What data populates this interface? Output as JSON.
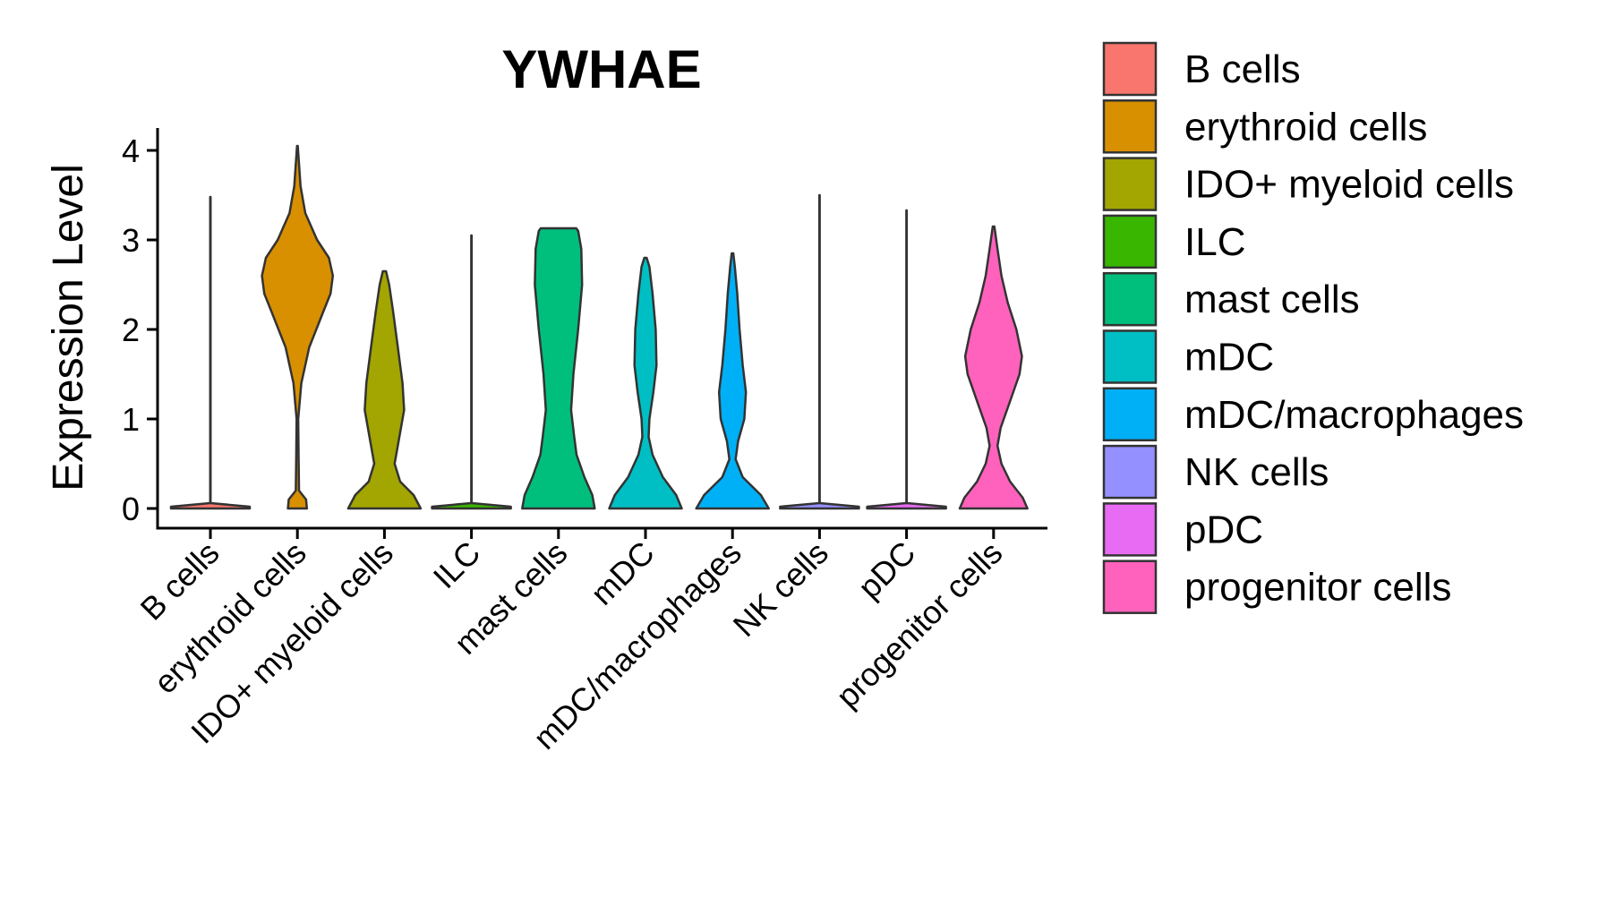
{
  "chart_data": {
    "type": "violin",
    "title": "YWHAE",
    "xlabel": "",
    "ylabel": "Expression Level",
    "ylim": [
      -0.2,
      4.25
    ],
    "yticks": [
      0,
      1,
      2,
      3,
      4
    ],
    "legend_position": "right",
    "categories": [
      "B cells",
      "erythroid cells",
      "IDO+ myeloid cells",
      "ILC",
      "mast cells",
      "mDC",
      "mDC/macrophages",
      "NK cells",
      "pDC",
      "progenitor cells"
    ],
    "series": [
      {
        "name": "B cells",
        "color": "#F8766D",
        "max": 3.48,
        "profile": [
          [
            0,
            1.0
          ],
          [
            0.02,
            1.0
          ],
          [
            0.06,
            0.005
          ],
          [
            3.48,
            0.005
          ]
        ]
      },
      {
        "name": "erythroid cells",
        "color": "#D89000",
        "max": 4.05,
        "profile": [
          [
            0,
            0.24
          ],
          [
            0.1,
            0.22
          ],
          [
            0.2,
            0.04
          ],
          [
            0.6,
            0.03
          ],
          [
            1.0,
            0.02
          ],
          [
            1.4,
            0.1
          ],
          [
            1.8,
            0.3
          ],
          [
            2.2,
            0.66
          ],
          [
            2.4,
            0.84
          ],
          [
            2.6,
            0.9
          ],
          [
            2.8,
            0.8
          ],
          [
            3.0,
            0.5
          ],
          [
            3.3,
            0.2
          ],
          [
            3.6,
            0.08
          ],
          [
            3.85,
            0.04
          ],
          [
            4.05,
            0.01
          ]
        ]
      },
      {
        "name": "IDO+ myeloid cells",
        "color": "#A3A500",
        "max": 2.65,
        "profile": [
          [
            0,
            0.92
          ],
          [
            0.15,
            0.74
          ],
          [
            0.3,
            0.4
          ],
          [
            0.5,
            0.26
          ],
          [
            0.8,
            0.38
          ],
          [
            1.1,
            0.5
          ],
          [
            1.4,
            0.46
          ],
          [
            1.8,
            0.34
          ],
          [
            2.2,
            0.22
          ],
          [
            2.5,
            0.12
          ],
          [
            2.65,
            0.04
          ]
        ]
      },
      {
        "name": "ILC",
        "color": "#39B600",
        "max": 3.05,
        "profile": [
          [
            0,
            1.0
          ],
          [
            0.02,
            1.0
          ],
          [
            0.06,
            0.005
          ],
          [
            3.05,
            0.005
          ]
        ]
      },
      {
        "name": "mast cells",
        "color": "#00BF7D",
        "max": 3.13,
        "profile": [
          [
            0,
            0.92
          ],
          [
            0.15,
            0.86
          ],
          [
            0.35,
            0.66
          ],
          [
            0.6,
            0.46
          ],
          [
            0.8,
            0.4
          ],
          [
            1.1,
            0.32
          ],
          [
            1.5,
            0.38
          ],
          [
            2.0,
            0.5
          ],
          [
            2.5,
            0.6
          ],
          [
            2.9,
            0.58
          ],
          [
            3.1,
            0.5
          ],
          [
            3.13,
            0.45
          ]
        ]
      },
      {
        "name": "mDC",
        "color": "#00BFC4",
        "max": 2.8,
        "profile": [
          [
            0,
            0.92
          ],
          [
            0.15,
            0.78
          ],
          [
            0.35,
            0.44
          ],
          [
            0.6,
            0.18
          ],
          [
            0.8,
            0.08
          ],
          [
            1.0,
            0.1
          ],
          [
            1.3,
            0.2
          ],
          [
            1.6,
            0.28
          ],
          [
            2.0,
            0.26
          ],
          [
            2.4,
            0.18
          ],
          [
            2.7,
            0.1
          ],
          [
            2.8,
            0.03
          ]
        ]
      },
      {
        "name": "mDC/macrophages",
        "color": "#00B0F6",
        "max": 2.85,
        "profile": [
          [
            0,
            0.92
          ],
          [
            0.15,
            0.72
          ],
          [
            0.35,
            0.26
          ],
          [
            0.55,
            0.08
          ],
          [
            0.75,
            0.14
          ],
          [
            1.0,
            0.3
          ],
          [
            1.3,
            0.34
          ],
          [
            1.6,
            0.26
          ],
          [
            2.0,
            0.18
          ],
          [
            2.4,
            0.12
          ],
          [
            2.7,
            0.06
          ],
          [
            2.85,
            0.02
          ]
        ]
      },
      {
        "name": "NK cells",
        "color": "#9590FF",
        "max": 3.5,
        "profile": [
          [
            0,
            1.0
          ],
          [
            0.02,
            1.0
          ],
          [
            0.06,
            0.005
          ],
          [
            3.5,
            0.005
          ]
        ]
      },
      {
        "name": "pDC",
        "color": "#E76BF3",
        "max": 3.33,
        "profile": [
          [
            0,
            1.0
          ],
          [
            0.02,
            1.0
          ],
          [
            0.06,
            0.005
          ],
          [
            3.33,
            0.005
          ]
        ]
      },
      {
        "name": "progenitor cells",
        "color": "#FF62BC",
        "max": 3.15,
        "profile": [
          [
            0,
            0.86
          ],
          [
            0.12,
            0.74
          ],
          [
            0.3,
            0.42
          ],
          [
            0.5,
            0.2
          ],
          [
            0.7,
            0.1
          ],
          [
            0.9,
            0.18
          ],
          [
            1.2,
            0.42
          ],
          [
            1.5,
            0.66
          ],
          [
            1.7,
            0.72
          ],
          [
            2.0,
            0.58
          ],
          [
            2.3,
            0.36
          ],
          [
            2.6,
            0.2
          ],
          [
            2.9,
            0.1
          ],
          [
            3.15,
            0.02
          ]
        ]
      }
    ]
  }
}
